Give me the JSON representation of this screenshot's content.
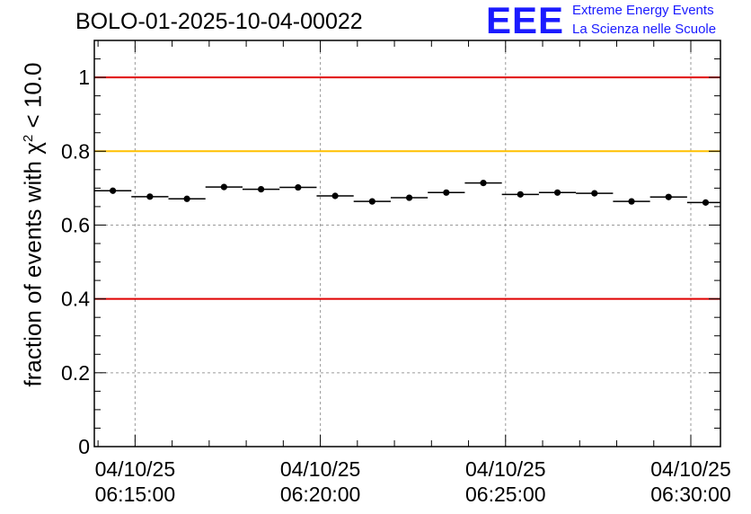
{
  "header": {
    "title": "BOLO-01-2025-10-04-00022",
    "logo_text": "EEE",
    "logo_line1": "Extreme Energy Events",
    "logo_line2": "La Scienza nelle Scuole"
  },
  "colors": {
    "accent_blue": "#1a1aff",
    "limit_red": "#e00000",
    "warning_yellow": "#ffc000",
    "grid": "#9a9a9a"
  },
  "chart_data": {
    "type": "scatter",
    "title": "BOLO-01-2025-10-04-00022",
    "ylabel_prefix": "fraction of events with ",
    "ylabel_symbol": "χ",
    "ylabel_sup": "2",
    "ylabel_suffix": " < 10.0",
    "xlabel": "",
    "ylim": [
      0,
      1.1
    ],
    "xlim_minutes": [
      -1.1,
      15.8
    ],
    "grid": true,
    "yticks": [
      {
        "value": 0,
        "label": "0"
      },
      {
        "value": 0.2,
        "label": "0.2"
      },
      {
        "value": 0.4,
        "label": "0.4"
      },
      {
        "value": 0.6,
        "label": "0.6"
      },
      {
        "value": 0.8,
        "label": "0.8"
      },
      {
        "value": 1.0,
        "label": "1"
      }
    ],
    "xticks": [
      {
        "minute": 0,
        "date": "04/10/25",
        "time": "06:15:00"
      },
      {
        "minute": 5,
        "date": "04/10/25",
        "time": "06:20:00"
      },
      {
        "minute": 10,
        "date": "04/10/25",
        "time": "06:25:00"
      },
      {
        "minute": 15,
        "date": "04/10/25",
        "time": "06:30:00"
      }
    ],
    "reference_lines": [
      {
        "name": "upper-limit",
        "value": 1.0,
        "color": "#e00000"
      },
      {
        "name": "warning-level",
        "value": 0.8,
        "color": "#ffc000"
      },
      {
        "name": "lower-limit",
        "value": 0.4,
        "color": "#e00000"
      }
    ],
    "bin_width_minutes": 1.0,
    "series": [
      {
        "name": "fraction",
        "x_minutes": [
          -0.6,
          0.4,
          1.4,
          2.4,
          3.4,
          4.4,
          5.4,
          6.4,
          7.4,
          8.4,
          9.4,
          10.4,
          11.4,
          12.4,
          13.4,
          14.4,
          15.4
        ],
        "values": [
          0.693,
          0.677,
          0.671,
          0.703,
          0.697,
          0.702,
          0.679,
          0.664,
          0.674,
          0.688,
          0.714,
          0.683,
          0.688,
          0.686,
          0.664,
          0.676,
          0.661
        ]
      }
    ]
  }
}
